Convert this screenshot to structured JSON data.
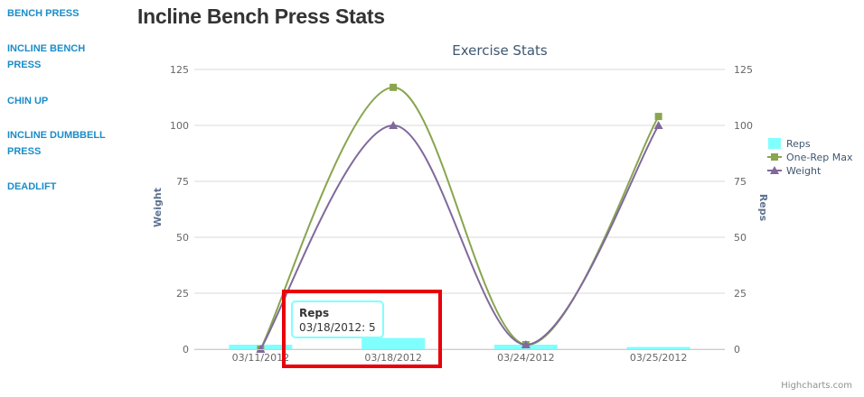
{
  "sidebar": {
    "items": [
      {
        "lines": [
          "BENCH PRESS"
        ]
      },
      {
        "lines": [
          "INCLINE BENCH",
          "PRESS"
        ]
      },
      {
        "lines": [
          "CHIN UP"
        ]
      },
      {
        "lines": [
          "INCLINE DUMBBELL",
          "PRESS"
        ]
      },
      {
        "lines": [
          "DEADLIFT"
        ]
      }
    ]
  },
  "page": {
    "title": "Incline Bench Press Stats"
  },
  "chart_data": {
    "type": "line",
    "title": "Exercise Stats",
    "categories": [
      "03/11/2012",
      "03/18/2012",
      "03/24/2012",
      "03/25/2012"
    ],
    "y_left": {
      "title": "Weight",
      "min": 0,
      "max": 125,
      "ticks": [
        0,
        25,
        50,
        75,
        100,
        125
      ]
    },
    "y_right": {
      "title": "Reps",
      "min": 0,
      "max": 125,
      "ticks": [
        0,
        25,
        50,
        75,
        100,
        125
      ]
    },
    "grid": true,
    "legend_position": "right",
    "series": [
      {
        "name": "Reps",
        "type": "column",
        "color": "#80ffff",
        "values": [
          2,
          5,
          2,
          1
        ]
      },
      {
        "name": "One-Rep Max",
        "type": "spline",
        "color": "#89a54e",
        "marker": "square",
        "values": [
          0,
          117,
          2,
          104
        ]
      },
      {
        "name": "Weight",
        "type": "spline",
        "color": "#80699b",
        "marker": "triangle",
        "values": [
          0,
          100,
          2,
          100
        ]
      }
    ],
    "tooltip": {
      "title": "Reps",
      "text": "03/18/2012: 5"
    },
    "credits": "Highcharts.com",
    "highlight_color": "#e8000b"
  }
}
